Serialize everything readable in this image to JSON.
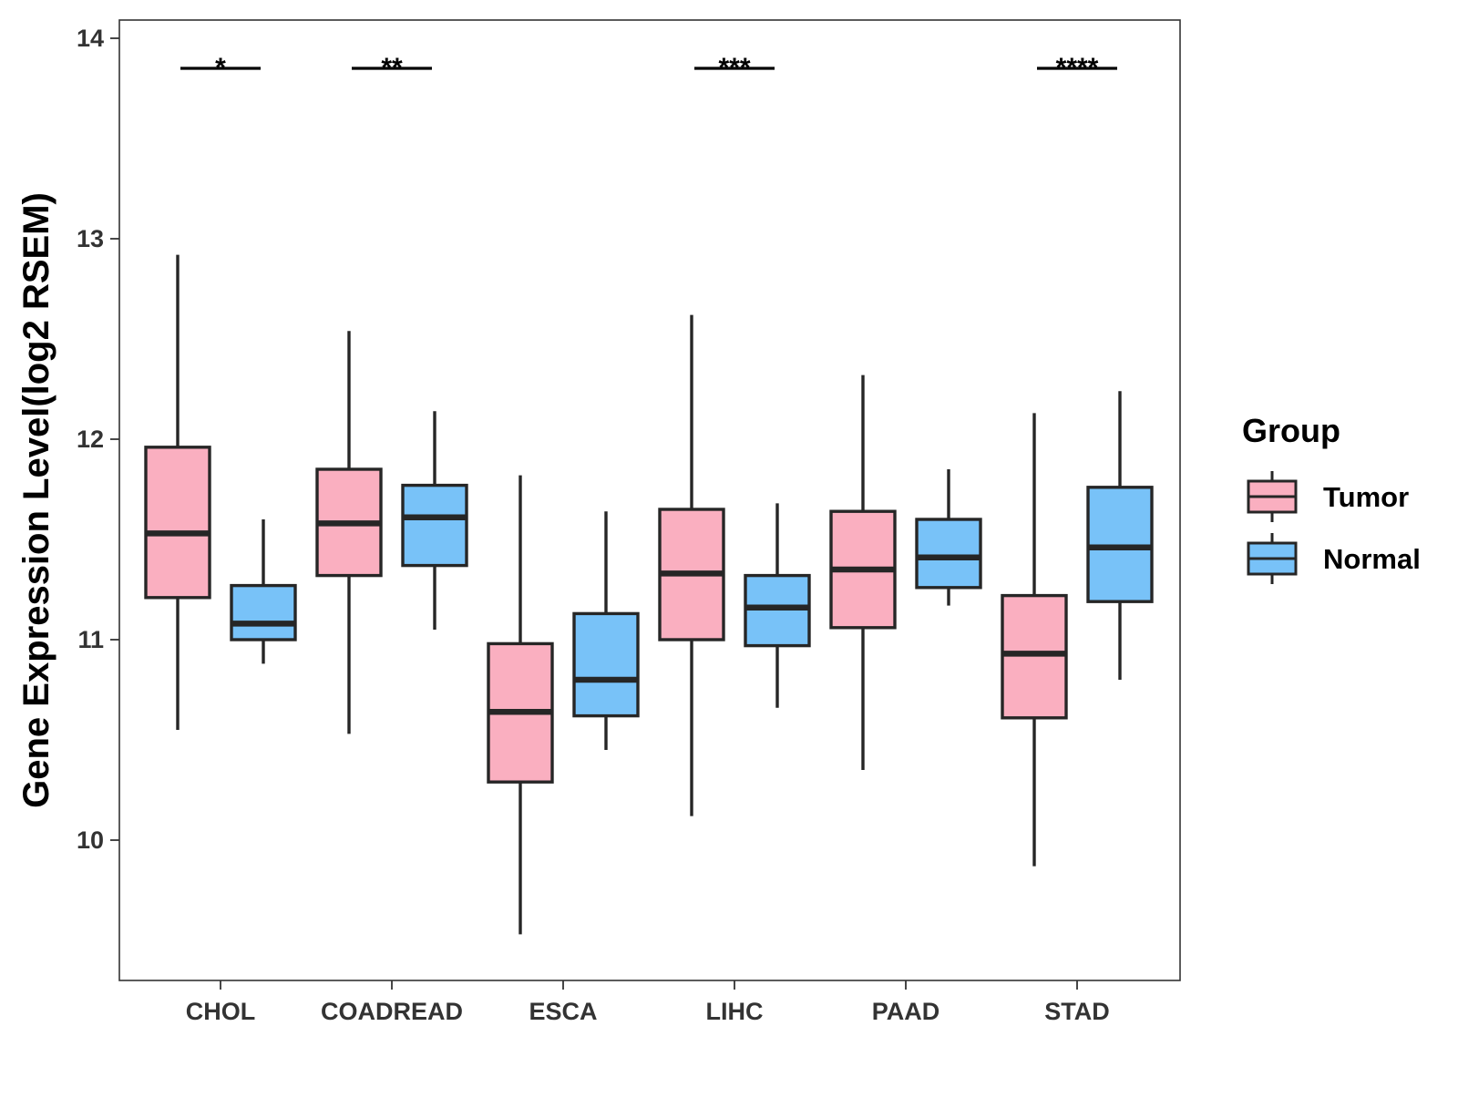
{
  "chart_data": {
    "type": "boxplot",
    "title": "",
    "xlabel": "",
    "ylabel": "Gene Expression Level(log2 RSEM)",
    "ylim": [
      9.33,
      14.1
    ],
    "yticks": [
      10,
      11,
      12,
      13,
      14
    ],
    "ytick_labels": [
      "10",
      "11",
      "12",
      "13",
      "14"
    ],
    "grid": false,
    "categories": [
      "CHOL",
      "COADREAD",
      "ESCA",
      "LIHC",
      "PAAD",
      "STAD"
    ],
    "legend": {
      "title": "Group",
      "position": "right",
      "items": [
        {
          "label": "Tumor",
          "color": "#FAAFC0"
        },
        {
          "label": "Normal",
          "color": "#78C2F8"
        }
      ]
    },
    "series": [
      {
        "name": "Tumor",
        "color": "#FAAFC0",
        "boxes": [
          {
            "whisker_low": 10.55,
            "q1": 11.21,
            "median": 11.53,
            "q3": 11.96,
            "whisker_high": 12.92
          },
          {
            "whisker_low": 10.53,
            "q1": 11.32,
            "median": 11.58,
            "q3": 11.85,
            "whisker_high": 12.54
          },
          {
            "whisker_low": 9.53,
            "q1": 10.29,
            "median": 10.64,
            "q3": 10.98,
            "whisker_high": 11.82
          },
          {
            "whisker_low": 10.12,
            "q1": 11.0,
            "median": 11.33,
            "q3": 11.65,
            "whisker_high": 12.62
          },
          {
            "whisker_low": 10.35,
            "q1": 11.06,
            "median": 11.35,
            "q3": 11.64,
            "whisker_high": 12.32
          },
          {
            "whisker_low": 9.87,
            "q1": 10.61,
            "median": 10.93,
            "q3": 11.22,
            "whisker_high": 12.13
          }
        ]
      },
      {
        "name": "Normal",
        "color": "#78C2F8",
        "boxes": [
          {
            "whisker_low": 10.88,
            "q1": 11.0,
            "median": 11.08,
            "q3": 11.27,
            "whisker_high": 11.6
          },
          {
            "whisker_low": 11.05,
            "q1": 11.37,
            "median": 11.61,
            "q3": 11.77,
            "whisker_high": 12.14
          },
          {
            "whisker_low": 10.45,
            "q1": 10.62,
            "median": 10.8,
            "q3": 11.13,
            "whisker_high": 11.64
          },
          {
            "whisker_low": 10.66,
            "q1": 10.97,
            "median": 11.16,
            "q3": 11.32,
            "whisker_high": 11.68
          },
          {
            "whisker_low": 11.17,
            "q1": 11.26,
            "median": 11.41,
            "q3": 11.6,
            "whisker_high": 11.85
          },
          {
            "whisker_low": 10.8,
            "q1": 11.19,
            "median": 11.46,
            "q3": 11.76,
            "whisker_high": 12.24
          }
        ]
      }
    ],
    "significance": [
      {
        "category": "CHOL",
        "label": "*"
      },
      {
        "category": "COADREAD",
        "label": "**"
      },
      {
        "category": "LIHC",
        "label": "***"
      },
      {
        "category": "STAD",
        "label": "****"
      }
    ],
    "significance_y": 13.85
  }
}
